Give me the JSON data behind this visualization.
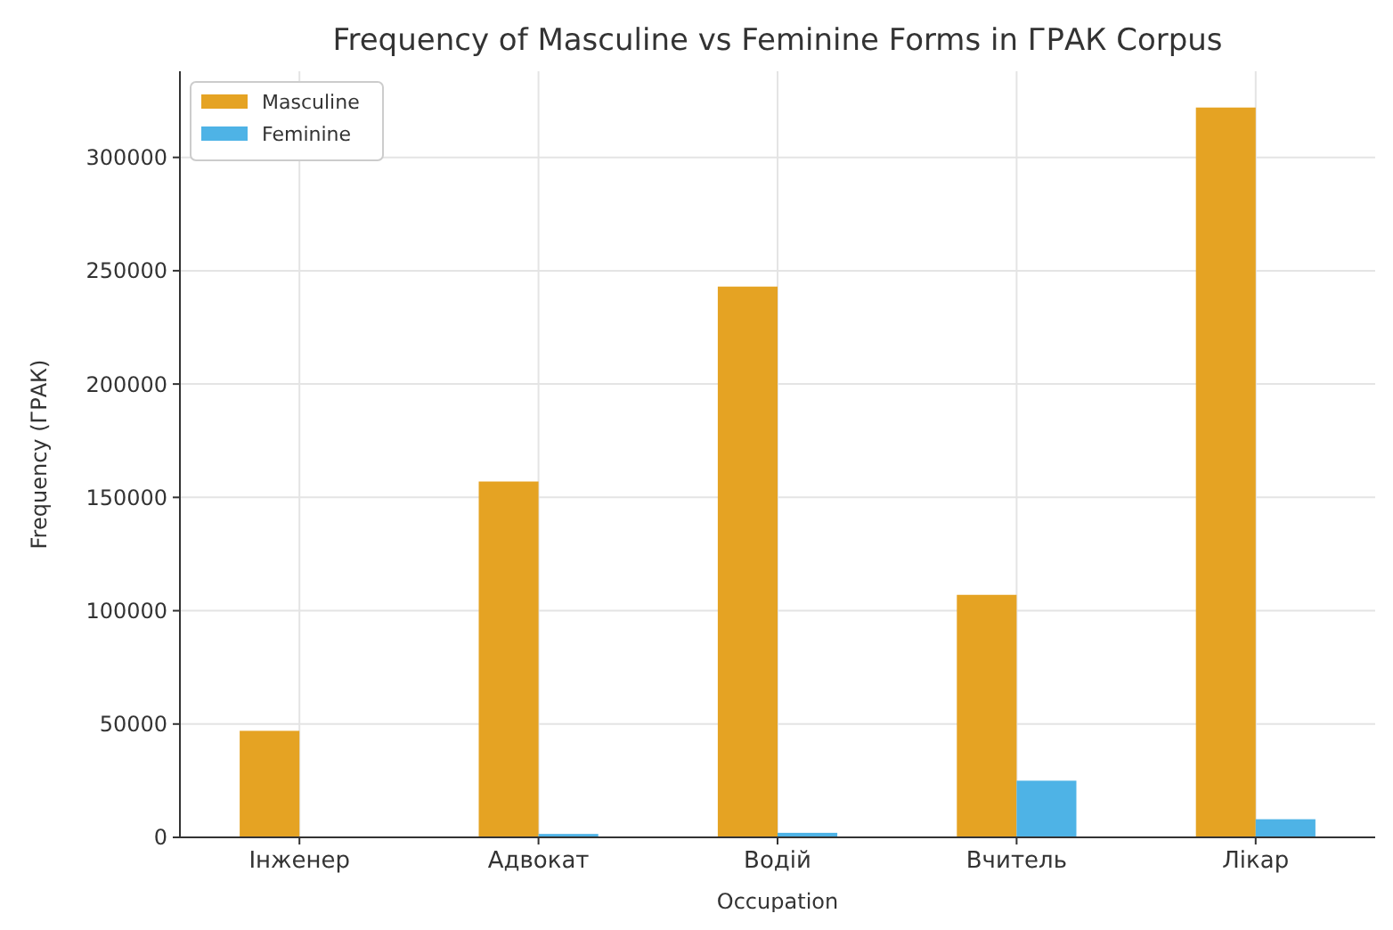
{
  "chart_data": {
    "type": "bar",
    "title": "Frequency of Masculine vs Feminine Forms in ГРАК Corpus",
    "xlabel": "Occupation",
    "ylabel": "Frequency (ГРАК)",
    "categories": [
      "Інженер",
      "Адвокат",
      "Водій",
      "Вчитель",
      "Лікар"
    ],
    "series": [
      {
        "name": "Masculine",
        "color": "#e5a323",
        "values": [
          47000,
          157000,
          243000,
          107000,
          322000
        ]
      },
      {
        "name": "Feminine",
        "color": "#4eb3e6",
        "values": [
          null,
          1500,
          2000,
          25000,
          8000
        ]
      }
    ],
    "ylim": [
      0,
      338000
    ],
    "yticks": [
      0,
      50000,
      100000,
      150000,
      200000,
      250000,
      300000
    ],
    "grid": true,
    "legend": "top left"
  }
}
